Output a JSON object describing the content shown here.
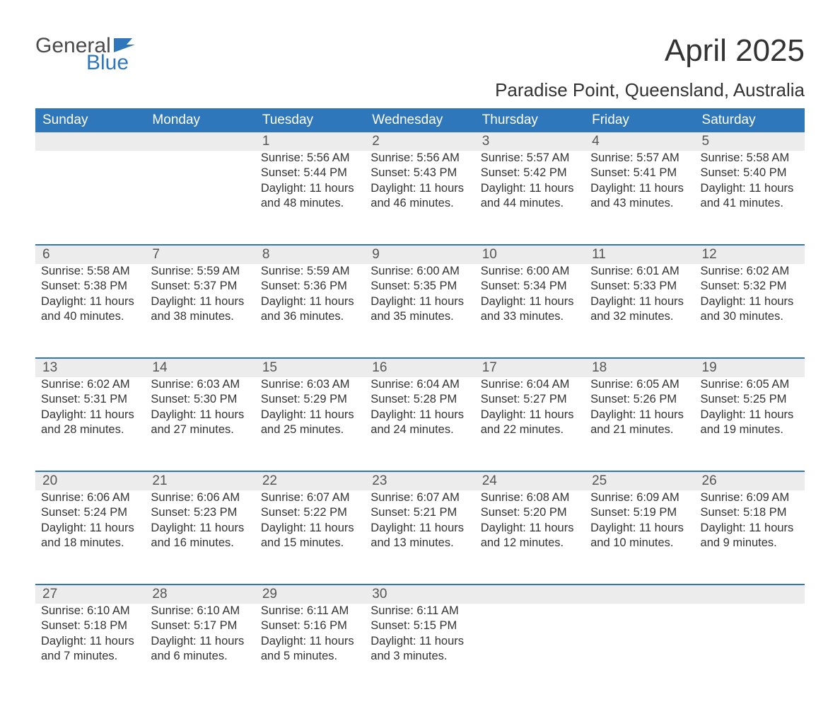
{
  "colors": {
    "header_bg": "#2f77bb",
    "header_text": "#ffffff",
    "daynum_bg": "#ececec",
    "daynum_text": "#555555",
    "body_text": "#333333",
    "separator": "#2f77bb",
    "logo_blue": "#2f77bb",
    "logo_text": "#4a4a4a",
    "background": "#ffffff"
  },
  "logo": {
    "word1": "General",
    "word2": "Blue"
  },
  "title": "April 2025",
  "location": "Paradise Point, Queensland, Australia",
  "days_of_week": [
    "Sunday",
    "Monday",
    "Tuesday",
    "Wednesday",
    "Thursday",
    "Friday",
    "Saturday"
  ],
  "weeks": [
    [
      null,
      null,
      {
        "num": "1",
        "sunrise": "Sunrise: 5:56 AM",
        "sunset": "Sunset: 5:44 PM",
        "daylight1": "Daylight: 11 hours",
        "daylight2": "and 48 minutes."
      },
      {
        "num": "2",
        "sunrise": "Sunrise: 5:56 AM",
        "sunset": "Sunset: 5:43 PM",
        "daylight1": "Daylight: 11 hours",
        "daylight2": "and 46 minutes."
      },
      {
        "num": "3",
        "sunrise": "Sunrise: 5:57 AM",
        "sunset": "Sunset: 5:42 PM",
        "daylight1": "Daylight: 11 hours",
        "daylight2": "and 44 minutes."
      },
      {
        "num": "4",
        "sunrise": "Sunrise: 5:57 AM",
        "sunset": "Sunset: 5:41 PM",
        "daylight1": "Daylight: 11 hours",
        "daylight2": "and 43 minutes."
      },
      {
        "num": "5",
        "sunrise": "Sunrise: 5:58 AM",
        "sunset": "Sunset: 5:40 PM",
        "daylight1": "Daylight: 11 hours",
        "daylight2": "and 41 minutes."
      }
    ],
    [
      {
        "num": "6",
        "sunrise": "Sunrise: 5:58 AM",
        "sunset": "Sunset: 5:38 PM",
        "daylight1": "Daylight: 11 hours",
        "daylight2": "and 40 minutes."
      },
      {
        "num": "7",
        "sunrise": "Sunrise: 5:59 AM",
        "sunset": "Sunset: 5:37 PM",
        "daylight1": "Daylight: 11 hours",
        "daylight2": "and 38 minutes."
      },
      {
        "num": "8",
        "sunrise": "Sunrise: 5:59 AM",
        "sunset": "Sunset: 5:36 PM",
        "daylight1": "Daylight: 11 hours",
        "daylight2": "and 36 minutes."
      },
      {
        "num": "9",
        "sunrise": "Sunrise: 6:00 AM",
        "sunset": "Sunset: 5:35 PM",
        "daylight1": "Daylight: 11 hours",
        "daylight2": "and 35 minutes."
      },
      {
        "num": "10",
        "sunrise": "Sunrise: 6:00 AM",
        "sunset": "Sunset: 5:34 PM",
        "daylight1": "Daylight: 11 hours",
        "daylight2": "and 33 minutes."
      },
      {
        "num": "11",
        "sunrise": "Sunrise: 6:01 AM",
        "sunset": "Sunset: 5:33 PM",
        "daylight1": "Daylight: 11 hours",
        "daylight2": "and 32 minutes."
      },
      {
        "num": "12",
        "sunrise": "Sunrise: 6:02 AM",
        "sunset": "Sunset: 5:32 PM",
        "daylight1": "Daylight: 11 hours",
        "daylight2": "and 30 minutes."
      }
    ],
    [
      {
        "num": "13",
        "sunrise": "Sunrise: 6:02 AM",
        "sunset": "Sunset: 5:31 PM",
        "daylight1": "Daylight: 11 hours",
        "daylight2": "and 28 minutes."
      },
      {
        "num": "14",
        "sunrise": "Sunrise: 6:03 AM",
        "sunset": "Sunset: 5:30 PM",
        "daylight1": "Daylight: 11 hours",
        "daylight2": "and 27 minutes."
      },
      {
        "num": "15",
        "sunrise": "Sunrise: 6:03 AM",
        "sunset": "Sunset: 5:29 PM",
        "daylight1": "Daylight: 11 hours",
        "daylight2": "and 25 minutes."
      },
      {
        "num": "16",
        "sunrise": "Sunrise: 6:04 AM",
        "sunset": "Sunset: 5:28 PM",
        "daylight1": "Daylight: 11 hours",
        "daylight2": "and 24 minutes."
      },
      {
        "num": "17",
        "sunrise": "Sunrise: 6:04 AM",
        "sunset": "Sunset: 5:27 PM",
        "daylight1": "Daylight: 11 hours",
        "daylight2": "and 22 minutes."
      },
      {
        "num": "18",
        "sunrise": "Sunrise: 6:05 AM",
        "sunset": "Sunset: 5:26 PM",
        "daylight1": "Daylight: 11 hours",
        "daylight2": "and 21 minutes."
      },
      {
        "num": "19",
        "sunrise": "Sunrise: 6:05 AM",
        "sunset": "Sunset: 5:25 PM",
        "daylight1": "Daylight: 11 hours",
        "daylight2": "and 19 minutes."
      }
    ],
    [
      {
        "num": "20",
        "sunrise": "Sunrise: 6:06 AM",
        "sunset": "Sunset: 5:24 PM",
        "daylight1": "Daylight: 11 hours",
        "daylight2": "and 18 minutes."
      },
      {
        "num": "21",
        "sunrise": "Sunrise: 6:06 AM",
        "sunset": "Sunset: 5:23 PM",
        "daylight1": "Daylight: 11 hours",
        "daylight2": "and 16 minutes."
      },
      {
        "num": "22",
        "sunrise": "Sunrise: 6:07 AM",
        "sunset": "Sunset: 5:22 PM",
        "daylight1": "Daylight: 11 hours",
        "daylight2": "and 15 minutes."
      },
      {
        "num": "23",
        "sunrise": "Sunrise: 6:07 AM",
        "sunset": "Sunset: 5:21 PM",
        "daylight1": "Daylight: 11 hours",
        "daylight2": "and 13 minutes."
      },
      {
        "num": "24",
        "sunrise": "Sunrise: 6:08 AM",
        "sunset": "Sunset: 5:20 PM",
        "daylight1": "Daylight: 11 hours",
        "daylight2": "and 12 minutes."
      },
      {
        "num": "25",
        "sunrise": "Sunrise: 6:09 AM",
        "sunset": "Sunset: 5:19 PM",
        "daylight1": "Daylight: 11 hours",
        "daylight2": "and 10 minutes."
      },
      {
        "num": "26",
        "sunrise": "Sunrise: 6:09 AM",
        "sunset": "Sunset: 5:18 PM",
        "daylight1": "Daylight: 11 hours",
        "daylight2": "and 9 minutes."
      }
    ],
    [
      {
        "num": "27",
        "sunrise": "Sunrise: 6:10 AM",
        "sunset": "Sunset: 5:18 PM",
        "daylight1": "Daylight: 11 hours",
        "daylight2": "and 7 minutes."
      },
      {
        "num": "28",
        "sunrise": "Sunrise: 6:10 AM",
        "sunset": "Sunset: 5:17 PM",
        "daylight1": "Daylight: 11 hours",
        "daylight2": "and 6 minutes."
      },
      {
        "num": "29",
        "sunrise": "Sunrise: 6:11 AM",
        "sunset": "Sunset: 5:16 PM",
        "daylight1": "Daylight: 11 hours",
        "daylight2": "and 5 minutes."
      },
      {
        "num": "30",
        "sunrise": "Sunrise: 6:11 AM",
        "sunset": "Sunset: 5:15 PM",
        "daylight1": "Daylight: 11 hours",
        "daylight2": "and 3 minutes."
      },
      null,
      null,
      null
    ]
  ]
}
